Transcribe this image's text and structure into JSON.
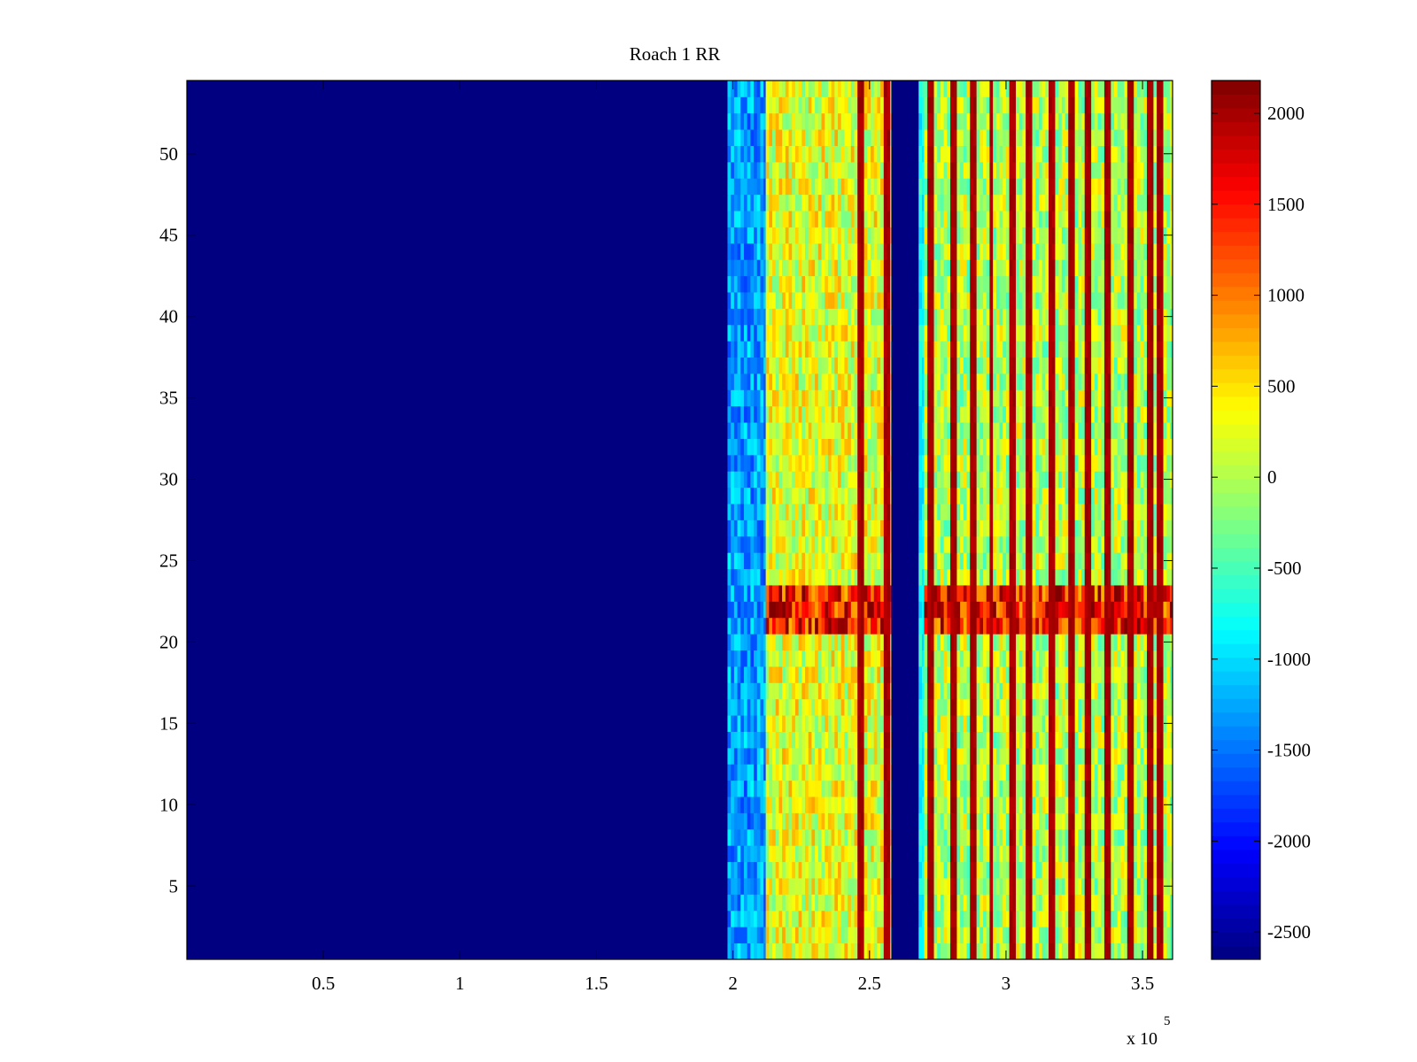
{
  "chart_data": {
    "type": "heatmap",
    "title": "Roach 1 RR",
    "xlabel": "",
    "ylabel": "",
    "colormap": "jet",
    "x_multiplier_label": "x 10",
    "x_multiplier_exponent": "5",
    "xlim": [
      0,
      361000
    ],
    "ylim": [
      0.5,
      54.5
    ],
    "x_ticks": [
      50000,
      100000,
      150000,
      200000,
      250000,
      300000,
      350000
    ],
    "x_tick_labels": [
      "0.5",
      "1",
      "1.5",
      "2",
      "2.5",
      "3",
      "3.5"
    ],
    "y_ticks": [
      5,
      10,
      15,
      20,
      25,
      30,
      35,
      40,
      45,
      50
    ],
    "y_tick_labels": [
      "5",
      "10",
      "15",
      "20",
      "25",
      "30",
      "35",
      "40",
      "45",
      "50"
    ],
    "rows": 54,
    "colorbar": {
      "clim": [
        -2650,
        2180
      ],
      "ticks": [
        -2500,
        -2000,
        -1500,
        -1000,
        -500,
        0,
        500,
        1000,
        1500,
        2000
      ],
      "tick_labels": [
        "-2500",
        "-2000",
        "-1500",
        "-1000",
        "-500",
        "0",
        "500",
        "1000",
        "1500",
        "2000"
      ]
    },
    "regions": [
      {
        "name": "no-signal",
        "x": [
          0,
          198000
        ],
        "value": -2650
      },
      {
        "name": "low-band",
        "x": [
          198000,
          212000
        ],
        "value": -1300
      },
      {
        "name": "active-band-1",
        "x": [
          212000,
          258000
        ],
        "value": 250
      },
      {
        "name": "gap",
        "x": [
          258000,
          268000
        ],
        "value": -2650
      },
      {
        "name": "edge",
        "x": [
          268000,
          270000
        ],
        "value": -800
      },
      {
        "name": "active-band-2",
        "x": [
          270000,
          361000
        ],
        "value": 0
      }
    ],
    "highlight_rows": {
      "rows": [
        21,
        22,
        23
      ],
      "value": 1500
    },
    "vertical_streaks_x": [
      246000,
      256000,
      272000,
      280000,
      287000,
      294000,
      302000,
      308000,
      316000,
      323000,
      329000,
      337000,
      345000,
      352000,
      356000
    ]
  }
}
